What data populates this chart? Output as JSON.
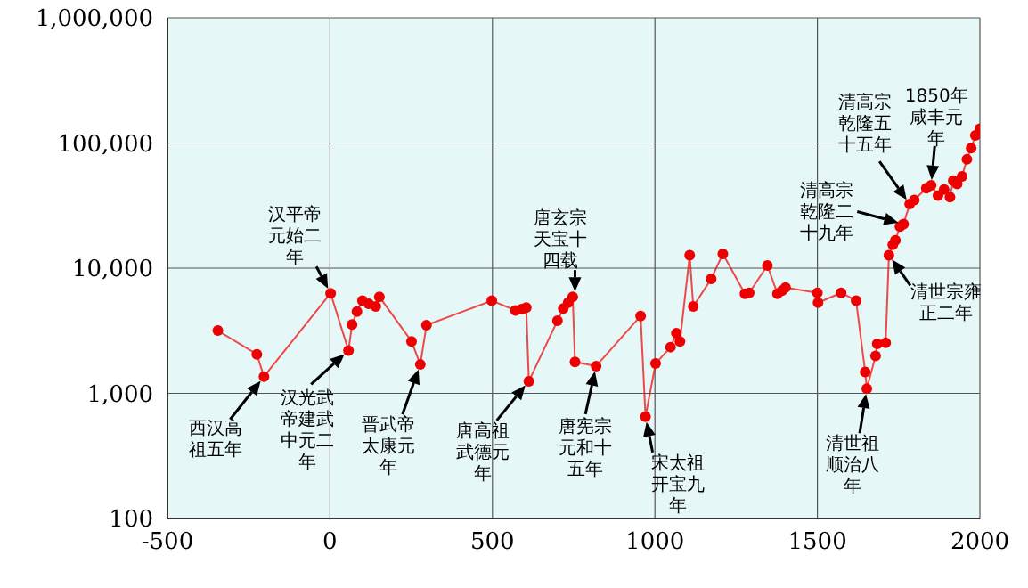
{
  "chart_data": {
    "type": "line",
    "x": [
      -345,
      -225,
      -203,
      2,
      57,
      68,
      83,
      100,
      119,
      141,
      152,
      251,
      278,
      297,
      498,
      571,
      590,
      604,
      612,
      700,
      718,
      733,
      747,
      754,
      819,
      956,
      971,
      1002,
      1048,
      1066,
      1077,
      1107,
      1118,
      1173,
      1209,
      1277,
      1290,
      1346,
      1377,
      1391,
      1402,
      1500,
      1502,
      1573,
      1619,
      1647,
      1652,
      1679,
      1684,
      1710,
      1720,
      1732,
      1740,
      1754,
      1765,
      1784,
      1798,
      1835,
      1850,
      1871,
      1890,
      1908,
      1918,
      1930,
      1945,
      1960,
      1973,
      1986,
      2000
    ],
    "series": [
      {
        "color": "#ee0000",
        "values": [
          3170,
          2050,
          1360,
          6300,
          2200,
          3540,
          4500,
          5500,
          5200,
          4950,
          5900,
          2600,
          1700,
          3500,
          5500,
          4600,
          4700,
          4850,
          1250,
          3800,
          4760,
          5300,
          5900,
          1780,
          1650,
          4150,
          650,
          1730,
          2340,
          3020,
          2600,
          12700,
          4940,
          8200,
          13000,
          6250,
          6350,
          10500,
          6250,
          6600,
          7000,
          6350,
          5300,
          6350,
          5500,
          1480,
          1090,
          1990,
          2480,
          2530,
          12700,
          15400,
          16700,
          21500,
          22500,
          32500,
          35000,
          43500,
          46000,
          38000,
          42500,
          37000,
          50000,
          47000,
          54000,
          74000,
          91000,
          115000,
          130000
        ]
      }
    ],
    "log": "y",
    "marker": "circle",
    "grid": true,
    "xlim": [
      -500,
      2000
    ],
    "xticks": [
      -500,
      0,
      500,
      1000,
      1500,
      2000
    ],
    "ylim": [
      100,
      1000000
    ],
    "yticks": [
      100,
      {
        "value": 1000,
        "label": "1,000"
      },
      {
        "value": 10000,
        "label": "10,000"
      },
      {
        "value": 100000,
        "label": "100,000"
      },
      {
        "value": 1000000,
        "label": "1,000,000"
      }
    ],
    "annotations": [
      {
        "text": "西汉高祖五年",
        "x": -203,
        "y": 1360
      },
      {
        "text": "汉平帝元始二年",
        "x": 2,
        "y": 6300
      },
      {
        "text": "汉光武帝建武中元二年",
        "x": 57,
        "y": 2200
      },
      {
        "text": "晋武帝太康元年",
        "x": 278,
        "y": 1700
      },
      {
        "text": "唐高祖武德元年",
        "x": 612,
        "y": 1250
      },
      {
        "text": "唐玄宗天宝十四载",
        "x": 754,
        "y": 5900
      },
      {
        "text": "唐宪宗元和十五年",
        "x": 819,
        "y": 1650
      },
      {
        "text": "宋太祖开宝九年",
        "x": 971,
        "y": 650
      },
      {
        "text": "清世祖顺治八年",
        "x": 1652,
        "y": 1090
      },
      {
        "text": "清世宗雍正二年",
        "x": 1720,
        "y": 12700
      },
      {
        "text": "清高宗乾隆二十九年",
        "x": 1765,
        "y": 22500
      },
      {
        "text": "清高宗乾隆五十五年",
        "x": 1784,
        "y": 32500
      },
      {
        "text": "1850年咸丰元年",
        "x": 1850,
        "y": 46000
      }
    ]
  }
}
